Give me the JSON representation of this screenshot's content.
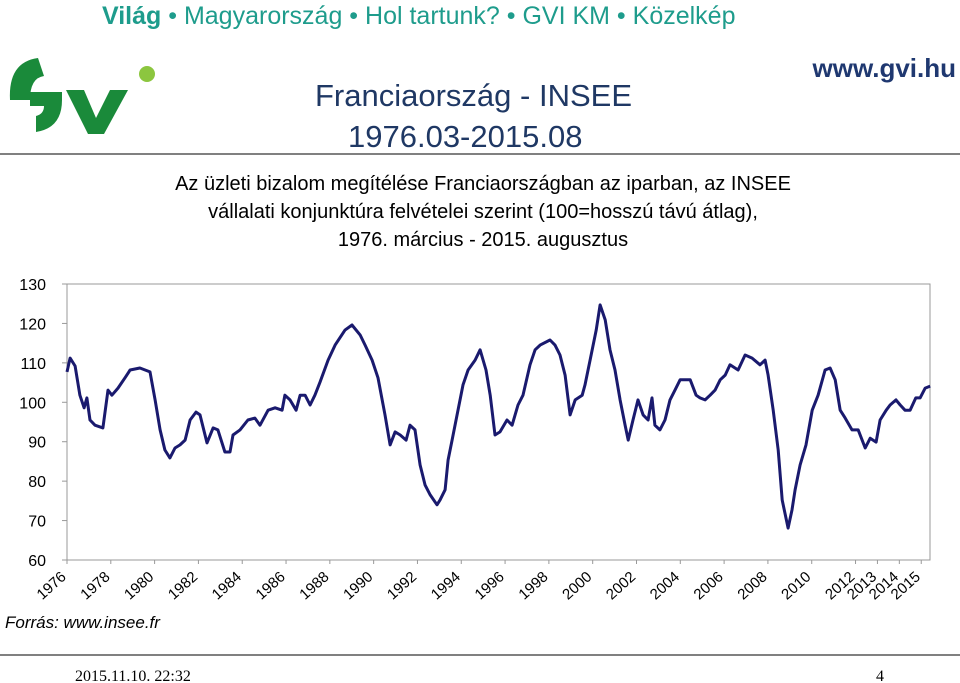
{
  "nav": [
    "Világ",
    "Magyarország",
    "Hol tartunk?",
    "GVI KM",
    "Közelkép"
  ],
  "header": {
    "site": "www.gvi.hu",
    "title": "Franciaország - INSEE",
    "subtitle": "1976.03-2015.08"
  },
  "chart_data": {
    "type": "line",
    "title": [
      "Az üzleti bizalom megítélése Franciaországban az iparban, az INSEE",
      "vállalati konjunktúra felvételei szerint (100=hosszú távú átlag),",
      "1976. március - 2015. augusztus"
    ],
    "color": "#1a1a6e",
    "x": [
      1976.0,
      1976.14,
      1976.37,
      1976.59,
      1976.78,
      1976.91,
      1977.05,
      1977.28,
      1977.64,
      1977.87,
      1978.05,
      1978.33,
      1978.65,
      1978.88,
      1979.33,
      1979.79,
      1980.02,
      1980.25,
      1980.47,
      1980.7,
      1980.93,
      1981.16,
      1981.39,
      1981.62,
      1981.89,
      1982.07,
      1982.39,
      1982.67,
      1982.89,
      1983.21,
      1983.44,
      1983.58,
      1983.9,
      1984.26,
      1984.58,
      1984.81,
      1985.18,
      1985.5,
      1985.82,
      1985.95,
      1986.18,
      1986.46,
      1986.64,
      1986.87,
      1987.1,
      1987.32,
      1987.55,
      1987.92,
      1988.24,
      1988.69,
      1989.01,
      1989.38,
      1989.61,
      1989.93,
      1990.2,
      1990.52,
      1990.75,
      1990.98,
      1991.21,
      1991.48,
      1991.66,
      1991.89,
      1992.12,
      1992.35,
      1992.58,
      1992.89,
      1993.03,
      1993.26,
      1993.4,
      1993.58,
      1993.85,
      1994.08,
      1994.31,
      1994.63,
      1994.86,
      1995.13,
      1995.32,
      1995.54,
      1995.77,
      1996.09,
      1996.32,
      1996.59,
      1996.82,
      1997.14,
      1997.37,
      1997.6,
      1998.05,
      1998.28,
      1998.51,
      1998.74,
      1998.97,
      1999.2,
      1999.52,
      1999.65,
      1999.88,
      2000.16,
      2000.34,
      2000.57,
      2000.79,
      2001.02,
      2001.25,
      2001.48,
      2001.62,
      2001.84,
      2002.07,
      2002.3,
      2002.53,
      2002.71,
      2002.84,
      2003.07,
      2003.3,
      2003.53,
      2003.76,
      2003.99,
      2004.45,
      2004.72,
      2004.9,
      2005.13,
      2005.36,
      2005.59,
      2005.82,
      2006.05,
      2006.27,
      2006.64,
      2006.96,
      2007.28,
      2007.64,
      2007.87,
      2008.01,
      2008.24,
      2008.47,
      2008.65,
      2008.92,
      2009.1,
      2009.24,
      2009.47,
      2009.74,
      2010.02,
      2010.29,
      2010.61,
      2010.84,
      2011.07,
      2011.3,
      2011.53,
      2011.84,
      2012.12,
      2012.44,
      2012.67,
      2012.94,
      2013.12,
      2013.4,
      2013.58,
      2013.85,
      2014.04,
      2014.26,
      2014.49,
      2014.75,
      2014.95,
      2015.18,
      2015.41
    ],
    "values": [
      107.7,
      111.2,
      109.2,
      101.8,
      98.6,
      101.1,
      95.5,
      94.2,
      93.5,
      103.1,
      101.8,
      103.6,
      106.2,
      108.2,
      108.7,
      107.7,
      100.6,
      93.0,
      87.9,
      85.9,
      88.4,
      89.2,
      90.4,
      95.5,
      97.5,
      96.8,
      89.7,
      93.5,
      93.0,
      87.4,
      87.4,
      91.7,
      93.0,
      95.5,
      96.0,
      94.2,
      98.0,
      98.6,
      98.0,
      101.8,
      100.6,
      98.0,
      101.8,
      101.8,
      99.3,
      101.8,
      105.1,
      110.7,
      114.5,
      118.3,
      119.6,
      117.1,
      114.5,
      110.7,
      106.2,
      96.8,
      89.2,
      92.5,
      91.7,
      90.4,
      94.2,
      93.0,
      84.1,
      79.0,
      76.5,
      74.0,
      75.2,
      77.8,
      85.4,
      90.4,
      98.0,
      104.4,
      108.2,
      110.7,
      113.3,
      108.2,
      101.8,
      91.7,
      92.5,
      95.5,
      94.2,
      99.3,
      101.8,
      109.5,
      113.3,
      114.5,
      115.8,
      114.5,
      112.0,
      106.9,
      96.8,
      100.6,
      101.8,
      104.4,
      110.7,
      118.3,
      124.7,
      120.9,
      113.3,
      108.2,
      100.6,
      94.2,
      90.4,
      95.5,
      100.6,
      96.8,
      95.5,
      101.1,
      94.2,
      93.0,
      95.5,
      100.6,
      103.1,
      105.7,
      105.7,
      101.8,
      101.1,
      100.6,
      101.8,
      103.1,
      105.7,
      106.9,
      109.5,
      108.2,
      112.0,
      111.2,
      109.5,
      110.7,
      106.9,
      98.0,
      87.9,
      75.2,
      68.1,
      72.7,
      77.8,
      84.1,
      89.2,
      98.0,
      101.8,
      108.2,
      108.7,
      105.7,
      98.0,
      96.0,
      93.0,
      93.0,
      88.4,
      90.9,
      89.9,
      95.5,
      98.0,
      99.3,
      100.6,
      99.3,
      98.0,
      98.0,
      101.1,
      101.1,
      103.6,
      104.1
    ],
    "xlim": [
      1976,
      2015.4
    ],
    "xticks": [
      1976,
      1978,
      1980,
      1982,
      1984,
      1986,
      1988,
      1990,
      1992,
      1994,
      1996,
      1998,
      2000,
      2002,
      2004,
      2006,
      2008,
      2010,
      2012,
      2013,
      2014,
      2015
    ],
    "ylim": [
      60,
      130
    ],
    "yticks": [
      60,
      70,
      80,
      90,
      100,
      110,
      120,
      130
    ],
    "grid": false
  },
  "source": "Forrás: www.insee.fr",
  "footer": {
    "date": "2015.11.10. 22:32",
    "page": "4"
  }
}
